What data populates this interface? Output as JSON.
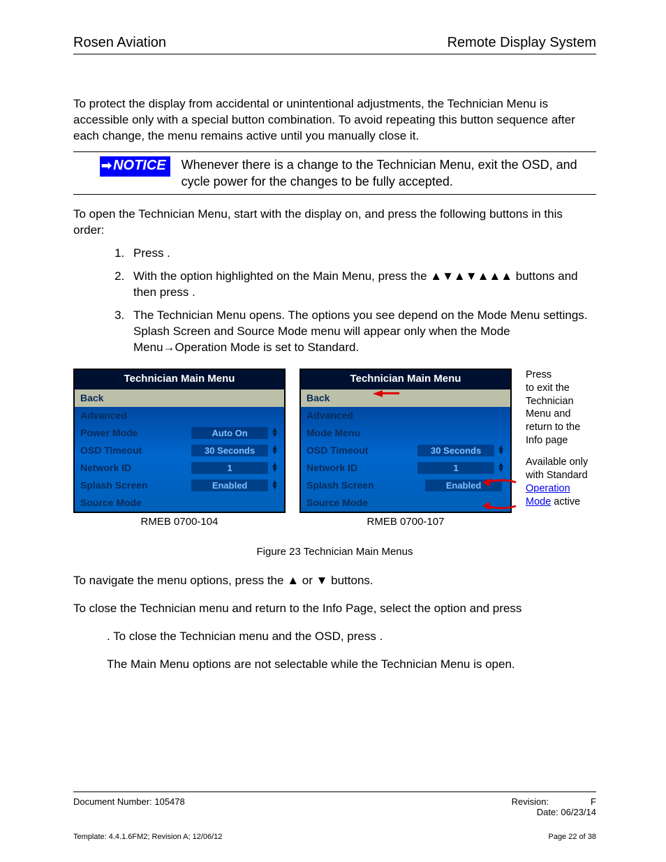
{
  "header": {
    "left": "Rosen Aviation",
    "right": "Remote Display System"
  },
  "intro": "To protect the display from accidental or unintentional adjustments, the Technician Menu is accessible only with a special button combination. To avoid repeating this button sequence after each change, the menu remains active until you manually close it.",
  "notice": {
    "badge": "NOTICE",
    "text": "Whenever there is a change to the Technician Menu, exit the OSD, and cycle power for the changes to be fully accepted."
  },
  "open_intro": "To open the Technician Menu, start with the display on, and press the following buttons in this order:",
  "steps": {
    "s1": "Press         .",
    "s2a": "With the         option highlighted on the Main Menu, press the ",
    "s2_arrows": "▲▼▲▼▲▲▲",
    "s2b": " buttons and then press         .",
    "s3": "The Technician Menu opens. The options you see depend on the Mode Menu settings. Splash Screen and Source Mode menu will appear only when the Mode Menu→Operation Mode is set to Standard."
  },
  "menu_left": {
    "title": "Technician Main Menu",
    "rows": [
      {
        "label": "Back",
        "value": "",
        "spinner": false,
        "hl": true
      },
      {
        "label": "Advanced",
        "value": "",
        "spinner": false
      },
      {
        "label": "Power Mode",
        "value": "Auto On",
        "spinner": true
      },
      {
        "label": "OSD Timeout",
        "value": "30 Seconds",
        "spinner": true
      },
      {
        "label": "Network ID",
        "value": "1",
        "spinner": true
      },
      {
        "label": "Splash Screen",
        "value": "Enabled",
        "spinner": true
      },
      {
        "label": "Source Mode",
        "value": "",
        "spinner": false
      }
    ],
    "caption": "RMEB 0700-104"
  },
  "menu_right": {
    "title": "Technician Main Menu",
    "rows": [
      {
        "label": "Back",
        "value": "",
        "spinner": false,
        "hl": true
      },
      {
        "label": "Advanced",
        "value": "",
        "spinner": false
      },
      {
        "label": "Mode Menu",
        "value": "",
        "spinner": false
      },
      {
        "label": "OSD Timeout",
        "value": "30 Seconds",
        "spinner": true
      },
      {
        "label": "Network ID",
        "value": "1",
        "spinner": true
      },
      {
        "label": "Splash Screen",
        "value": "Enabled",
        "spinner": false,
        "valbox": true
      },
      {
        "label": "Source Mode",
        "value": "",
        "spinner": false
      }
    ],
    "caption": "RMEB 0700-107"
  },
  "annot": {
    "a1a": "Press",
    "a1b": "to exit the Technician Menu and return to the Info page",
    "a2a": "Available only with Standard ",
    "a2_link": "Operation Mode",
    "a2b": " active"
  },
  "figure": "Figure 23  Technician Main Menus",
  "nav_text_a": "To navigate the menu options, press the ",
  "nav_arrows": "▲ or ▼",
  "nav_text_b": " buttons.",
  "close1": "To close the Technician menu and return to the Info Page, select the          option and press",
  "close2": ". To close the Technician menu and the OSD, press         .",
  "note_main": "The Main Menu options are not selectable while the Technician Menu is open.",
  "footer": {
    "doc": "Document Number: 105478",
    "rev_label": "Revision:",
    "rev_val": "F",
    "date": "Date: 06/23/14",
    "template": "Template: 4.4.1.6FM2; Revision A; 12/06/12",
    "page": "Page 22 of 38"
  },
  "colors": {
    "notice_bg": "#0000ff",
    "menu_bg_top": "#001a3a",
    "menu_bg_mid": "#0066cc",
    "highlight": "#bcc0a8",
    "label_color": "#0a2a5a",
    "value_color": "#7fc0ff",
    "link": "#0000ee",
    "arrow": "#d00000"
  }
}
